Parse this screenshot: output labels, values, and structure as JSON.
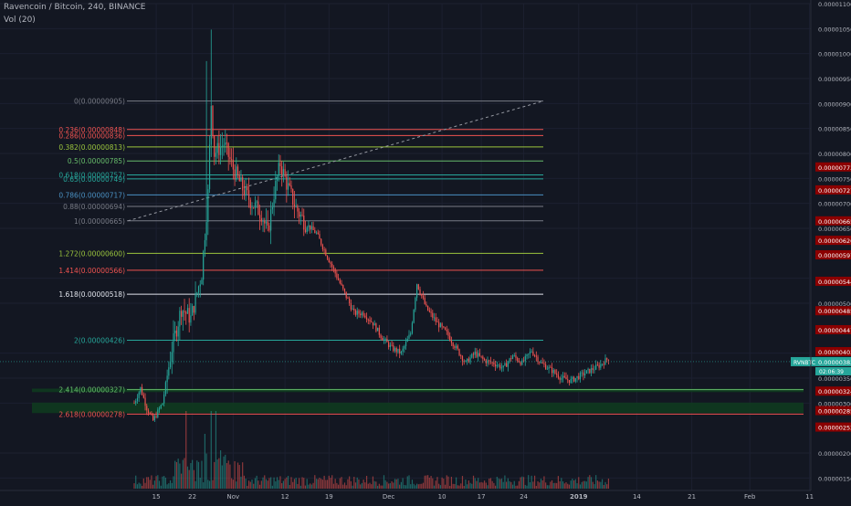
{
  "header": {
    "title": "Ravencoin / Bitcoin, 240, BINANCE",
    "volume_label": "Vol (20)"
  },
  "colors": {
    "background": "#131722",
    "up": "#26a69a",
    "down": "#ef5350",
    "axis_text": "#b2b5be",
    "ticker_badge": "#26a69a",
    "price_badge": "#8b0000",
    "zone": "#0f3a1f"
  },
  "chart_data": {
    "type": "candlestick",
    "title": "Ravencoin / Bitcoin, 240, BINANCE",
    "ylim": [
      1.25e-06,
      1.1e-05
    ],
    "x_ticks": [
      "15",
      "22",
      "Nov",
      "12",
      "19",
      "Dec",
      "10",
      "17",
      "24",
      "2019",
      "14",
      "21",
      "Feb",
      "11"
    ],
    "y_ticks": [
      "0.00001100",
      "0.00001050",
      "0.00001000",
      "0.00000950",
      "0.00000900",
      "0.00000850",
      "0.00000800",
      "0.00000750",
      "0.00000700",
      "0.00000650",
      "0.00000550",
      "0.00000500",
      "0.00000400",
      "0.00000350",
      "0.00000300",
      "0.00000200",
      "0.00000150"
    ],
    "fibonacci": [
      {
        "label": "0(0.00000905)",
        "value": 9.05e-06,
        "color": "#787b86"
      },
      {
        "label": "0.236(0.00000848)",
        "value": 8.48e-06,
        "color": "#ef5350"
      },
      {
        "label": "0.286(0.00000836)",
        "value": 8.36e-06,
        "color": "#ef5350"
      },
      {
        "label": "0.382(0.00000813)",
        "value": 8.13e-06,
        "color": "#9bc53d"
      },
      {
        "label": "0.5(0.00000785)",
        "value": 7.85e-06,
        "color": "#66bb6a"
      },
      {
        "label": "0.618(0.00000757)",
        "value": 7.57e-06,
        "color": "#26a69a"
      },
      {
        "label": "0.65(0.00000749)",
        "value": 7.49e-06,
        "color": "#26a69a"
      },
      {
        "label": "0.786(0.00000717)",
        "value": 7.17e-06,
        "color": "#4a90c2"
      },
      {
        "label": "0.88(0.00000694)",
        "value": 6.94e-06,
        "color": "#787b86"
      },
      {
        "label": "1(0.00000665)",
        "value": 6.65e-06,
        "color": "#787b86"
      },
      {
        "label": "1.272(0.00000600)",
        "value": 6e-06,
        "color": "#9bc53d"
      },
      {
        "label": "1.414(0.00000566)",
        "value": 5.66e-06,
        "color": "#ef5350"
      },
      {
        "label": "1.618(0.00000518)",
        "value": 5.18e-06,
        "color": "#e0e3eb"
      },
      {
        "label": "2(0.00000426)",
        "value": 4.26e-06,
        "color": "#26a69a"
      },
      {
        "label": "2.414(0.00000327)",
        "value": 3.27e-06,
        "color": "#66bb6a"
      },
      {
        "label": "2.618(0.00000278)",
        "value": 2.78e-06,
        "color": "#ef5350"
      }
    ],
    "price_badges": [
      {
        "label": "0.00000773",
        "value": 7.73e-06
      },
      {
        "label": "0.00000727",
        "value": 7.27e-06
      },
      {
        "label": "0.00000665",
        "value": 6.65e-06
      },
      {
        "label": "0.00000626",
        "value": 6.26e-06
      },
      {
        "label": "0.00000597",
        "value": 5.97e-06
      },
      {
        "label": "0.00000544",
        "value": 5.44e-06
      },
      {
        "label": "0.00000485",
        "value": 4.85e-06
      },
      {
        "label": "0.00000447",
        "value": 4.47e-06
      },
      {
        "label": "0.00000403",
        "value": 4.03e-06
      },
      {
        "label": "0.00000324",
        "value": 3.24e-06
      },
      {
        "label": "0.00000285",
        "value": 2.85e-06
      },
      {
        "label": "0.00000252",
        "value": 2.52e-06
      }
    ],
    "current": {
      "ticker": "RVNBTC",
      "price_label": "0.00000383",
      "value": 3.83e-06,
      "countdown": "02:06:39"
    },
    "zones": [
      {
        "low": 3.22e-06,
        "high": 3.29e-06
      },
      {
        "low": 2.8e-06,
        "high": 3.01e-06
      }
    ],
    "trendline": {
      "from": [
        "Oct 14",
        6.65e-06
      ],
      "to": [
        "Dec 26",
        9.05e-06
      ]
    },
    "price_path": [
      [
        0,
        3e-06
      ],
      [
        2,
        3.3e-06
      ],
      [
        4,
        2.9e-06
      ],
      [
        6,
        2.65e-06
      ],
      [
        9,
        3e-06
      ],
      [
        12,
        4.1e-06
      ],
      [
        15,
        4.9e-06
      ],
      [
        18,
        4.7e-06
      ],
      [
        21,
        5.6e-06
      ],
      [
        23,
        7.2e-06
      ],
      [
        24,
        9e-06
      ],
      [
        25,
        8e-06
      ],
      [
        28,
        8.2e-06
      ],
      [
        31,
        7.7e-06
      ],
      [
        34,
        7.3e-06
      ],
      [
        37,
        7e-06
      ],
      [
        40,
        6.8e-06
      ],
      [
        42,
        6.4e-06
      ],
      [
        44,
        7.2e-06
      ],
      [
        46,
        7.8e-06
      ],
      [
        48,
        7.4e-06
      ],
      [
        51,
        6.9e-06
      ],
      [
        54,
        6.6e-06
      ],
      [
        57,
        6.4e-06
      ],
      [
        60,
        6e-06
      ],
      [
        63,
        5.6e-06
      ],
      [
        66,
        5.2e-06
      ],
      [
        69,
        4.8e-06
      ],
      [
        72,
        4.8e-06
      ],
      [
        75,
        4.6e-06
      ],
      [
        78,
        4.3e-06
      ],
      [
        81,
        4.1e-06
      ],
      [
        84,
        4e-06
      ],
      [
        87,
        4.4e-06
      ],
      [
        89,
        5.4e-06
      ],
      [
        92,
        4.9e-06
      ],
      [
        95,
        4.6e-06
      ],
      [
        98,
        4.4e-06
      ],
      [
        101,
        4.1e-06
      ],
      [
        104,
        3.8e-06
      ],
      [
        107,
        4e-06
      ],
      [
        110,
        3.85e-06
      ],
      [
        113,
        3.8e-06
      ],
      [
        116,
        3.7e-06
      ],
      [
        119,
        3.95e-06
      ],
      [
        122,
        3.8e-06
      ],
      [
        125,
        4.05e-06
      ],
      [
        128,
        3.8e-06
      ],
      [
        131,
        3.65e-06
      ],
      [
        134,
        3.5e-06
      ],
      [
        137,
        3.45e-06
      ],
      [
        140,
        3.55e-06
      ],
      [
        143,
        3.65e-06
      ],
      [
        146,
        3.75e-06
      ],
      [
        149,
        3.9e-06
      ]
    ],
    "volume_ylim": [
      0,
      1
    ]
  }
}
